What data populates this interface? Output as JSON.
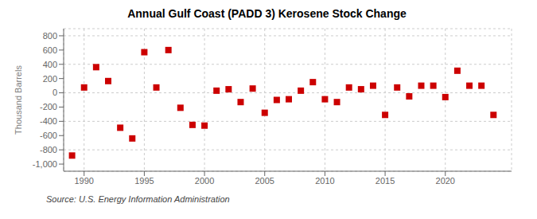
{
  "chart_data": {
    "type": "scatter",
    "title": "Annual Gulf Coast (PADD 3) Kerosene Stock Change",
    "ylabel": "Thousand Barrels",
    "annotation": "Source: U.S. Energy Information Administration",
    "x": [
      1989,
      1990,
      1991,
      1992,
      1993,
      1994,
      1995,
      1996,
      1997,
      1998,
      1999,
      2000,
      2001,
      2002,
      2003,
      2004,
      2005,
      2006,
      2007,
      2008,
      2009,
      2010,
      2011,
      2012,
      2013,
      2014,
      2015,
      2016,
      2017,
      2018,
      2019,
      2020,
      2021,
      2022,
      2023,
      2024
    ],
    "values": [
      -880,
      75,
      360,
      165,
      -490,
      -640,
      570,
      75,
      600,
      -210,
      -450,
      -460,
      30,
      50,
      -130,
      60,
      -280,
      -100,
      -90,
      30,
      150,
      -90,
      -130,
      75,
      50,
      100,
      -310,
      75,
      -50,
      100,
      100,
      -60,
      310,
      100,
      100,
      -310
    ],
    "color": "#cc0000",
    "marker": "square",
    "xlim": [
      1988.3,
      2025.5
    ],
    "xticks": [
      1990,
      1995,
      2000,
      2005,
      2010,
      2015,
      2020
    ],
    "ylim": [
      -1100,
      900
    ],
    "yticks": [
      {
        "value": -1000,
        "label": "-1,000"
      },
      -800,
      -600,
      -400,
      -200,
      0,
      200,
      400,
      600,
      800
    ],
    "grid": true
  }
}
